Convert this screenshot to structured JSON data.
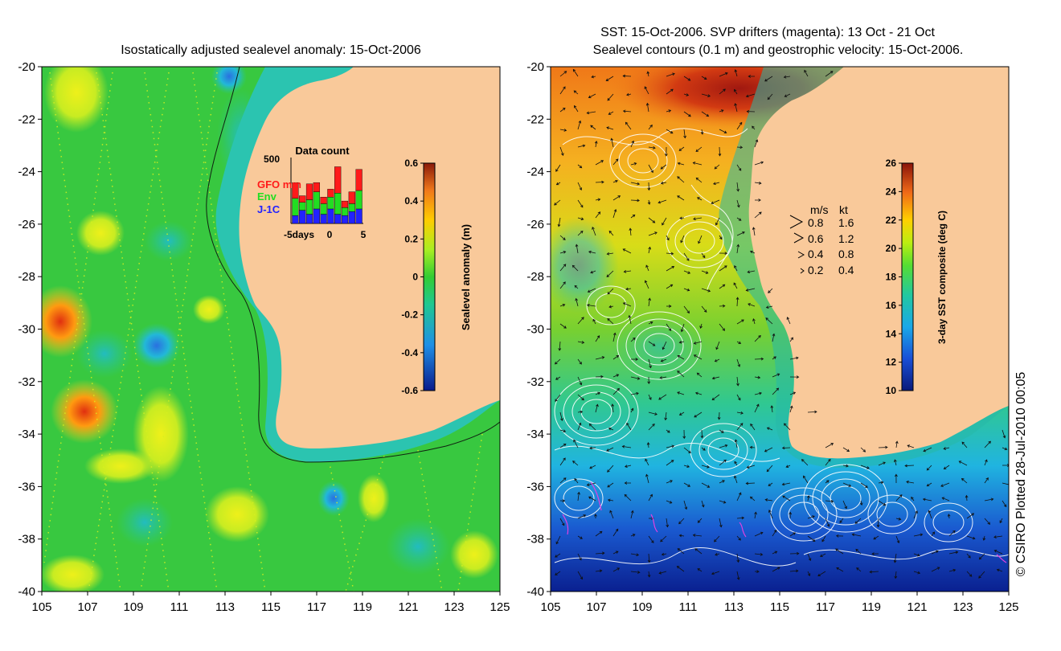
{
  "left_panel": {
    "title": "Isostatically adjusted sealevel anomaly: 15-Oct-2006",
    "x_ticks": [
      "105",
      "107",
      "109",
      "111",
      "113",
      "115",
      "117",
      "119",
      "121",
      "123",
      "125"
    ],
    "y_ticks": [
      "-20",
      "-22",
      "-24",
      "-26",
      "-28",
      "-30",
      "-32",
      "-34",
      "-36",
      "-38",
      "-40"
    ],
    "colorbar": {
      "label": "Sealevel anomaly (m)",
      "ticks": [
        "0.6",
        "0.4",
        "0.2",
        "0",
        "-0.2",
        "-0.4",
        "-0.6"
      ],
      "range": [
        -0.6,
        0.6
      ]
    },
    "inset": {
      "title": "Data count",
      "ymax_label": "500",
      "legend": [
        {
          "label": "GFO mm",
          "color": "#ff1a1a"
        },
        {
          "label": "Env",
          "color": "#22dd22"
        },
        {
          "label": "J-1C",
          "color": "#2222ff"
        }
      ],
      "x_labels": {
        "left": "-5days",
        "mid": "0",
        "right": "5"
      },
      "chart_data": {
        "type": "bar",
        "title": "Data count",
        "ylim": [
          0,
          500
        ],
        "categories": [
          "-5",
          "-4",
          "-3",
          "-2",
          "-1",
          "0",
          "1",
          "2",
          "3",
          "4"
        ],
        "series": [
          {
            "name": "J-1C",
            "values": [
              60,
              100,
              70,
              110,
              70,
              110,
              70,
              60,
              90,
              110
            ]
          },
          {
            "name": "Env",
            "values": [
              130,
              60,
              110,
              130,
              80,
              90,
              160,
              60,
              60,
              140
            ]
          },
          {
            "name": "GFO mm",
            "values": [
              120,
              50,
              120,
              70,
              50,
              60,
              200,
              50,
              90,
              160
            ]
          }
        ]
      }
    }
  },
  "right_panel": {
    "title_line1": "SST: 15-Oct-2006. SVP drifters (magenta): 13 Oct - 21 Oct",
    "title_line2": "Sealevel contours (0.1 m) and geostrophic velocity: 15-Oct-2006.",
    "x_ticks": [
      "105",
      "107",
      "109",
      "111",
      "113",
      "115",
      "117",
      "119",
      "121",
      "123",
      "125"
    ],
    "y_ticks": [
      "-20",
      "-22",
      "-24",
      "-26",
      "-28",
      "-30",
      "-32",
      "-34",
      "-36",
      "-38",
      "-40"
    ],
    "colorbar": {
      "label": "3-day SST composite (deg C)",
      "ticks": [
        "26",
        "24",
        "22",
        "20",
        "18",
        "16",
        "14",
        "12",
        "10"
      ],
      "range": [
        10,
        26
      ]
    },
    "velocity_legend": {
      "header_ms": "m/s",
      "header_kt": "kt",
      "rows": [
        {
          "ms": "0.8",
          "kt": "1.6"
        },
        {
          "ms": "0.6",
          "kt": "1.2"
        },
        {
          "ms": "0.4",
          "kt": "0.8"
        },
        {
          "ms": "0.2",
          "kt": "0.4"
        }
      ]
    }
  },
  "credit": "© CSIRO Plotted 28-Jul-2010 00:05",
  "colors": {
    "land": "#f9c99a",
    "coast_shelf": "#33c4b8",
    "sla_base": "#38c840",
    "contour": "#ffffff",
    "drifter": "#e040e0"
  }
}
